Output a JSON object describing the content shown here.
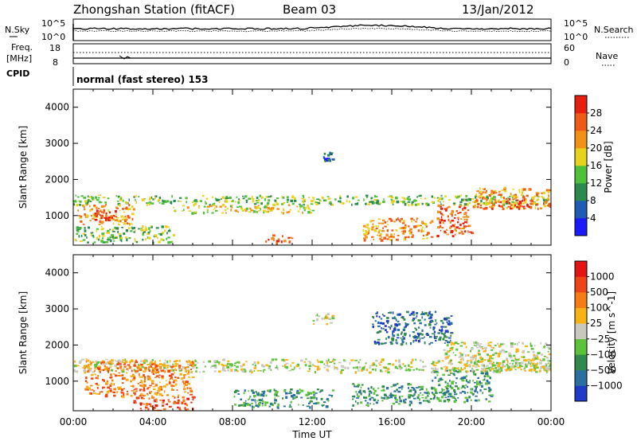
{
  "header": {
    "station": "Zhongshan Station (fitACF)",
    "beam": "Beam 03",
    "date": "13/Jan/2012"
  },
  "top_panels": {
    "sky_label": "N.Sky",
    "sky_ticks": [
      "10^5",
      "10^0"
    ],
    "search_label": "N.Search",
    "search_ticks": [
      "10^5",
      "10^0"
    ],
    "freq_label_1": "Freq.",
    "freq_label_2": "[MHz]",
    "freq_ticks": [
      "18",
      "8"
    ],
    "nave_label": "Nave",
    "nave_ticks": [
      "60",
      "0"
    ],
    "cpid_label": "CPID",
    "cpid_text": "normal (fast stereo) 153"
  },
  "chart_data": [
    {
      "type": "heatmap",
      "title": "",
      "xlabel": "",
      "ylabel": "Slant Range [km]",
      "xlim": [
        0,
        24
      ],
      "ylim": [
        180,
        4500
      ],
      "x_ticks": [],
      "y_ticks": [
        "1000",
        "2000",
        "3000",
        "4000"
      ],
      "y_tick_values": [
        1000,
        2000,
        3000,
        4000
      ],
      "colorbar": {
        "label": "Power [dB]",
        "ticks": [
          "4",
          "8",
          "12",
          "16",
          "20",
          "24",
          "28"
        ],
        "colors": [
          "#1a1aff",
          "#1f5ab4",
          "#2b8a4e",
          "#4fc03a",
          "#e8d21c",
          "#f29018",
          "#ef5a16",
          "#e61f10"
        ]
      },
      "echo_regions": [
        {
          "t_start": 0.0,
          "t_end": 24.0,
          "r_center": 1450,
          "r_halfwidth": 130,
          "level": 3
        },
        {
          "t_start": 0.2,
          "t_end": 3.0,
          "r_center": 1050,
          "r_halfwidth": 280,
          "level": 5
        },
        {
          "t_start": 1.0,
          "t_end": 2.2,
          "r_center": 1000,
          "r_halfwidth": 180,
          "level": 7
        },
        {
          "t_start": 0.0,
          "t_end": 5.0,
          "r_center": 500,
          "r_halfwidth": 230,
          "level": 3
        },
        {
          "t_start": 9.5,
          "t_end": 11.0,
          "r_center": 380,
          "r_halfwidth": 120,
          "level": 6
        },
        {
          "t_start": 5.0,
          "t_end": 12.0,
          "r_center": 1200,
          "r_halfwidth": 110,
          "level": 4
        },
        {
          "t_start": 12.5,
          "t_end": 13.0,
          "r_center": 2650,
          "r_halfwidth": 120,
          "level": 1
        },
        {
          "t_start": 14.5,
          "t_end": 18.0,
          "r_center": 650,
          "r_halfwidth": 300,
          "level": 5
        },
        {
          "t_start": 18.2,
          "t_end": 20.0,
          "r_center": 900,
          "r_halfwidth": 450,
          "level": 6
        },
        {
          "t_start": 20.0,
          "t_end": 24.0,
          "r_center": 1500,
          "r_halfwidth": 300,
          "level": 5
        },
        {
          "t_start": 21.0,
          "t_end": 23.0,
          "r_center": 1350,
          "r_halfwidth": 140,
          "level": 7
        }
      ]
    },
    {
      "type": "heatmap",
      "title": "",
      "xlabel": "Time UT",
      "ylabel": "Slant Range [km]",
      "xlim": [
        0,
        24
      ],
      "ylim": [
        180,
        4500
      ],
      "x_ticks": [
        "00:00",
        "04:00",
        "08:00",
        "12:00",
        "16:00",
        "20:00",
        "00:00"
      ],
      "x_tick_values": [
        0,
        4,
        8,
        12,
        16,
        20,
        24
      ],
      "y_ticks": [
        "1000",
        "2000",
        "3000",
        "4000"
      ],
      "y_tick_values": [
        1000,
        2000,
        3000,
        4000
      ],
      "colorbar": {
        "label": "Velocity [m s^-1]",
        "ticks": [
          "1000",
          "500",
          "100",
          "25",
          "−25",
          "−100",
          "−500",
          "−1000"
        ],
        "colors": [
          "#1e3cc8",
          "#2a6fa0",
          "#2f8a4c",
          "#5cc23a",
          "#c8c8be",
          "#f7b315",
          "#f57d14",
          "#ef4416",
          "#e41414"
        ]
      },
      "echo_regions": [
        {
          "t_start": 0.0,
          "t_end": 24.0,
          "r_center": 1450,
          "r_halfwidth": 180,
          "level": 4
        },
        {
          "t_start": 0.5,
          "t_end": 6.0,
          "r_center": 1100,
          "r_halfwidth": 500,
          "level": 6
        },
        {
          "t_start": 3.0,
          "t_end": 6.0,
          "r_center": 400,
          "r_halfwidth": 200,
          "level": 7
        },
        {
          "t_start": 8.0,
          "t_end": 13.0,
          "r_center": 550,
          "r_halfwidth": 250,
          "level": 2
        },
        {
          "t_start": 12.0,
          "t_end": 13.0,
          "r_center": 2750,
          "r_halfwidth": 150,
          "level": 4
        },
        {
          "t_start": 14.0,
          "t_end": 18.0,
          "r_center": 650,
          "r_halfwidth": 300,
          "level": 2
        },
        {
          "t_start": 18.0,
          "t_end": 21.0,
          "r_center": 900,
          "r_halfwidth": 450,
          "level": 2
        },
        {
          "t_start": 18.5,
          "t_end": 24.0,
          "r_center": 1700,
          "r_halfwidth": 400,
          "level": 4
        },
        {
          "t_start": 15.0,
          "t_end": 19.0,
          "r_center": 2500,
          "r_halfwidth": 450,
          "level": 1
        }
      ]
    }
  ]
}
